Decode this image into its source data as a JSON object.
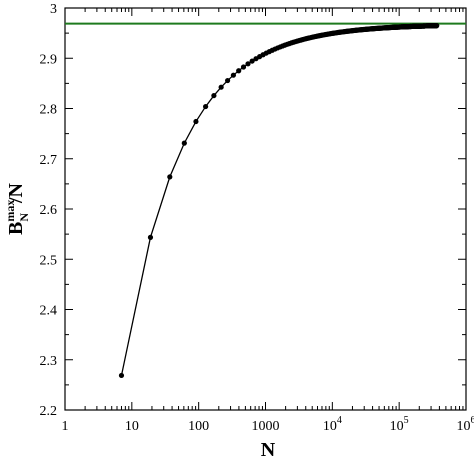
{
  "chart_data": {
    "type": "line",
    "title": "",
    "xlabel": "N",
    "ylabel": {
      "base": "B",
      "subscript": "N",
      "superscript": "max",
      "suffix": "/N"
    },
    "x_scale": "log",
    "xlim": [
      1,
      1000000
    ],
    "ylim": [
      2.2,
      3.0
    ],
    "x_ticks": [
      {
        "value": 1,
        "label": "1"
      },
      {
        "value": 10,
        "label": "10"
      },
      {
        "value": 100,
        "label": "100"
      },
      {
        "value": 1000,
        "label": "1000"
      },
      {
        "value": 10000,
        "base": "10",
        "exp": "4"
      },
      {
        "value": 100000,
        "base": "10",
        "exp": "5"
      },
      {
        "value": 1000000,
        "base": "10",
        "exp": "6"
      }
    ],
    "y_ticks": [
      {
        "value": 2.2,
        "label": "2.2"
      },
      {
        "value": 2.3,
        "label": "2.3"
      },
      {
        "value": 2.4,
        "label": "2.4"
      },
      {
        "value": 2.5,
        "label": "2.5"
      },
      {
        "value": 2.6,
        "label": "2.6"
      },
      {
        "value": 2.7,
        "label": "2.7"
      },
      {
        "value": 2.8,
        "label": "2.8"
      },
      {
        "value": 2.9,
        "label": "2.9"
      },
      {
        "value": 3.0,
        "label": "3"
      }
    ],
    "grid": false,
    "reference_line": {
      "y": 2.969,
      "color": "#1e7a1e"
    },
    "series": [
      {
        "color": "#000000",
        "marker": "circle",
        "x": [
          7,
          19,
          37,
          61,
          91,
          127,
          169,
          217,
          271,
          331,
          397,
          469,
          547,
          631,
          721,
          817,
          919,
          1027,
          1141,
          1261,
          1387,
          1519,
          1657,
          1801,
          1951,
          2107,
          2269,
          2437,
          2611,
          2791,
          2977,
          3169,
          3367,
          3571,
          3781,
          3997,
          4219,
          4447,
          4681,
          4921,
          5167,
          5419,
          5677,
          5941,
          6211,
          6487,
          6769,
          7057,
          7351,
          7651,
          7957,
          8269,
          8587,
          8911,
          9241,
          9577,
          9919,
          10267,
          10621,
          10981,
          11347,
          11719,
          12097,
          12481,
          12871,
          13267,
          13669,
          14077,
          14491,
          14911,
          15337,
          15769,
          16207,
          16651,
          17101,
          17557,
          18019,
          18487,
          18961,
          19441,
          19927,
          20419,
          20917,
          21421,
          21931,
          22447,
          22969,
          23497,
          24031,
          24571,
          25117,
          25669,
          26227,
          26791,
          27361,
          27937,
          28519,
          29107,
          29701,
          30301,
          30907,
          31519,
          32137,
          32761,
          33391,
          34027,
          34669,
          35317,
          35971,
          36631,
          37297,
          37969,
          38647,
          39331,
          40021,
          40717,
          41419,
          42127,
          42841,
          43561,
          44287,
          45019,
          45757,
          46501,
          47251,
          48007,
          48769,
          49537,
          50311,
          51091,
          51877,
          52669,
          53467,
          54271,
          55081,
          55897,
          56719,
          57547,
          58381,
          59221,
          60067,
          60919,
          61777,
          62641,
          63511,
          64387,
          65269,
          66157,
          67051,
          67951,
          68857,
          69769,
          70687,
          71611,
          72541,
          73477,
          74419,
          75367,
          76321,
          77281,
          78247,
          79219,
          80197,
          81181,
          82171,
          83167,
          84169,
          85177,
          86191,
          87211,
          88237,
          89269,
          90307,
          91351,
          92401,
          93457,
          94519,
          95587,
          96661,
          97741,
          98827,
          99919,
          101017,
          102121,
          103231,
          104347,
          105469,
          106597,
          107731,
          108871,
          110017,
          111169,
          112327,
          113491,
          114661,
          115837,
          117019,
          118207,
          119401,
          120601,
          121807,
          123019,
          124237,
          125461,
          126691,
          127927,
          129169,
          130417,
          131671,
          132931,
          134197,
          135469,
          136747,
          138031,
          139321,
          140617,
          141919,
          143227,
          144541,
          145861,
          147187,
          148519,
          149857,
          151201,
          152551,
          153907,
          155269,
          156637,
          158011,
          159391,
          160777,
          162169,
          163567,
          164971,
          166381,
          167797,
          169219,
          170647,
          172081,
          173521,
          174967,
          176419,
          177877,
          179341,
          180811,
          182287,
          183769,
          185257,
          186751,
          188251,
          189757,
          191269,
          192787,
          194311,
          195841,
          197377,
          198919,
          200467,
          202021,
          203581,
          205147,
          206719,
          208297,
          209881,
          211471,
          213067,
          214669,
          216277,
          217891,
          219511,
          221137,
          222769,
          224407,
          226051,
          227701,
          229357,
          231019,
          232687,
          234361,
          236041,
          237727,
          239419,
          241117,
          242821,
          244531,
          246247,
          247969,
          249697,
          251431,
          253171,
          254917,
          256669,
          258427,
          260191,
          261961,
          263737,
          265519,
          267307,
          269101,
          270901,
          272707,
          274519,
          276337,
          278161,
          279991,
          281827,
          283669,
          285517,
          287371,
          289231,
          291097,
          292969,
          294847,
          296731,
          298621,
          300517,
          302419,
          304327,
          306241,
          308161,
          310087,
          312019,
          313957,
          315901,
          317851,
          319807,
          321769,
          323737,
          325711,
          327691,
          329677,
          331669,
          333667,
          335671,
          337681,
          339697,
          341719,
          343747,
          345781,
          347821,
          349867,
          351919,
          353977,
          356041,
          358111,
          360187,
          362269,
          364357
        ],
        "y_model": {
          "asymptote": 2.968,
          "coefficient": 1.85,
          "power": 0.5,
          "note": ""
        }
      }
    ]
  }
}
